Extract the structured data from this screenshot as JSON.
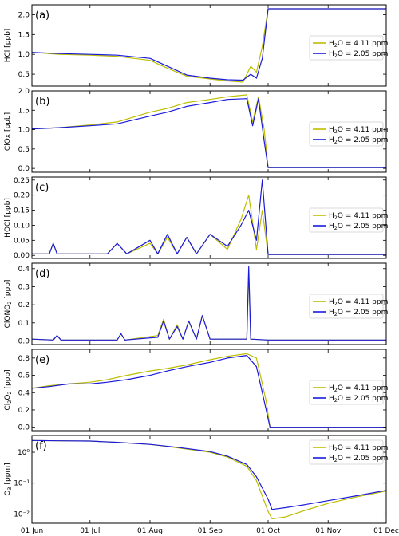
{
  "colors": {
    "h2o_high": "#bdbd00",
    "h2o_low": "#1a1adc"
  },
  "x_tick_labels": [
    "01 Jun",
    "01 Jul",
    "01 Aug",
    "01 Sep",
    "01 Oct",
    "01 Nov",
    "01 Dec"
  ],
  "chart_data": [
    {
      "type": "line",
      "panel_label": "(a)",
      "ylabel": "HCl [ppb]",
      "yscale": "linear",
      "ylim": [
        0.2,
        2.25
      ],
      "yticks": [
        0.5,
        1.0,
        1.5,
        2.0
      ],
      "ytick_labels": [
        "0.5",
        "1.0",
        "1.5",
        "2.0"
      ],
      "x": [
        "2011-06-01",
        "2011-06-15",
        "2011-07-01",
        "2011-07-15",
        "2011-08-01",
        "2011-08-10",
        "2011-08-20",
        "2011-09-01",
        "2011-09-10",
        "2011-09-18",
        "2011-09-22",
        "2011-09-25",
        "2011-09-28",
        "2011-10-01",
        "2011-10-15",
        "2011-11-01",
        "2011-11-15",
        "2011-12-01"
      ],
      "series": [
        {
          "name": "H2O = 4.11 ppm",
          "values": [
            1.05,
            1.0,
            0.98,
            0.95,
            0.85,
            0.65,
            0.45,
            0.38,
            0.33,
            0.3,
            0.7,
            0.55,
            1.2,
            2.15,
            2.15,
            2.15,
            2.15,
            2.15
          ]
        },
        {
          "name": "H2O = 2.05 ppm",
          "values": [
            1.05,
            1.02,
            1.0,
            0.98,
            0.9,
            0.7,
            0.48,
            0.4,
            0.36,
            0.35,
            0.5,
            0.4,
            0.9,
            2.15,
            2.15,
            2.15,
            2.15,
            2.15
          ]
        }
      ]
    },
    {
      "type": "line",
      "panel_label": "(b)",
      "ylabel": "ClOx [ppb]",
      "yscale": "linear",
      "ylim": [
        -0.1,
        2.0
      ],
      "yticks": [
        0.0,
        0.5,
        1.0,
        1.5,
        2.0
      ],
      "ytick_labels": [
        "0.0",
        "0.5",
        "1.0",
        "1.5",
        "2.0"
      ],
      "x": [
        "2011-06-01",
        "2011-06-15",
        "2011-07-01",
        "2011-07-15",
        "2011-08-01",
        "2011-08-10",
        "2011-08-20",
        "2011-09-01",
        "2011-09-10",
        "2011-09-20",
        "2011-09-23",
        "2011-09-26",
        "2011-09-29",
        "2011-10-01",
        "2011-10-15",
        "2011-11-01",
        "2011-11-15",
        "2011-12-01"
      ],
      "series": [
        {
          "name": "H2O = 4.11 ppm",
          "values": [
            1.02,
            1.05,
            1.12,
            1.2,
            1.45,
            1.55,
            1.7,
            1.78,
            1.85,
            1.9,
            1.2,
            1.85,
            1.0,
            0.02,
            0.02,
            0.02,
            0.02,
            0.02
          ]
        },
        {
          "name": "H2O = 2.05 ppm",
          "values": [
            1.02,
            1.05,
            1.1,
            1.15,
            1.35,
            1.45,
            1.6,
            1.7,
            1.78,
            1.8,
            1.1,
            1.8,
            0.7,
            0.02,
            0.02,
            0.02,
            0.02,
            0.02
          ]
        }
      ]
    },
    {
      "type": "line",
      "panel_label": "(c)",
      "ylabel": "HOCl [ppb]",
      "yscale": "linear",
      "ylim": [
        -0.01,
        0.26
      ],
      "yticks": [
        0.0,
        0.05,
        0.1,
        0.15,
        0.2,
        0.25
      ],
      "ytick_labels": [
        "0.00",
        "0.05",
        "0.10",
        "0.15",
        "0.20",
        "0.25"
      ],
      "x": [
        "2011-06-01",
        "2011-06-10",
        "2011-06-12",
        "2011-06-14",
        "2011-07-01",
        "2011-07-10",
        "2011-07-15",
        "2011-07-20",
        "2011-08-01",
        "2011-08-05",
        "2011-08-10",
        "2011-08-15",
        "2011-08-20",
        "2011-08-25",
        "2011-09-01",
        "2011-09-10",
        "2011-09-17",
        "2011-09-21",
        "2011-09-25",
        "2011-09-28",
        "2011-10-01",
        "2011-10-15",
        "2011-11-01",
        "2011-12-01"
      ],
      "series": [
        {
          "name": "H2O = 4.11 ppm",
          "values": [
            0.005,
            0.005,
            0.04,
            0.005,
            0.005,
            0.005,
            0.04,
            0.005,
            0.04,
            0.005,
            0.06,
            0.005,
            0.06,
            0.005,
            0.07,
            0.02,
            0.12,
            0.2,
            0.02,
            0.15,
            0.003,
            0.003,
            0.003,
            0.003
          ]
        },
        {
          "name": "H2O = 2.05 ppm",
          "values": [
            0.005,
            0.005,
            0.04,
            0.005,
            0.005,
            0.005,
            0.04,
            0.005,
            0.05,
            0.005,
            0.07,
            0.005,
            0.06,
            0.005,
            0.07,
            0.03,
            0.1,
            0.15,
            0.05,
            0.25,
            0.003,
            0.003,
            0.003,
            0.003
          ]
        }
      ]
    },
    {
      "type": "line",
      "panel_label": "(d)",
      "ylabel": "ClONO2 [ppb]",
      "yscale": "linear",
      "ylim": [
        -0.02,
        0.43
      ],
      "yticks": [
        0.0,
        0.1,
        0.2,
        0.3,
        0.4
      ],
      "ytick_labels": [
        "0.0",
        "0.1",
        "0.2",
        "0.3",
        "0.4"
      ],
      "x": [
        "2011-06-01",
        "2011-06-12",
        "2011-06-14",
        "2011-06-16",
        "2011-07-15",
        "2011-07-17",
        "2011-07-19",
        "2011-08-05",
        "2011-08-08",
        "2011-08-11",
        "2011-08-15",
        "2011-08-18",
        "2011-08-21",
        "2011-08-25",
        "2011-08-28",
        "2011-09-01",
        "2011-09-20",
        "2011-09-21",
        "2011-09-22",
        "2011-10-01",
        "2011-12-01"
      ],
      "series": [
        {
          "name": "H2O = 4.11 ppm",
          "values": [
            0.01,
            0.005,
            0.03,
            0.005,
            0.005,
            0.04,
            0.005,
            0.03,
            0.12,
            0.01,
            0.09,
            0.01,
            0.11,
            0.01,
            0.14,
            0.01,
            0.01,
            0.38,
            0.01,
            0.005,
            0.005
          ]
        },
        {
          "name": "H2O = 2.05 ppm",
          "values": [
            0.01,
            0.005,
            0.03,
            0.005,
            0.005,
            0.04,
            0.005,
            0.02,
            0.11,
            0.01,
            0.08,
            0.01,
            0.11,
            0.01,
            0.14,
            0.01,
            0.01,
            0.41,
            0.01,
            0.005,
            0.005
          ]
        }
      ]
    },
    {
      "type": "line",
      "panel_label": "(e)",
      "ylabel": "Cl2O2 [ppb]",
      "yscale": "linear",
      "ylim": [
        -0.04,
        0.9
      ],
      "yticks": [
        0.0,
        0.2,
        0.4,
        0.6,
        0.8
      ],
      "ytick_labels": [
        "0.0",
        "0.2",
        "0.4",
        "0.6",
        "0.8"
      ],
      "x": [
        "2011-06-01",
        "2011-06-10",
        "2011-06-20",
        "2011-07-01",
        "2011-07-10",
        "2011-07-20",
        "2011-08-01",
        "2011-08-10",
        "2011-08-20",
        "2011-09-01",
        "2011-09-10",
        "2011-09-20",
        "2011-09-25",
        "2011-09-30",
        "2011-10-02",
        "2011-11-01",
        "2011-12-01"
      ],
      "series": [
        {
          "name": "H2O = 4.11 ppm",
          "values": [
            0.45,
            0.48,
            0.5,
            0.52,
            0.55,
            0.6,
            0.65,
            0.68,
            0.72,
            0.78,
            0.82,
            0.85,
            0.8,
            0.3,
            0.0,
            0.0,
            0.0
          ]
        },
        {
          "name": "H2O = 2.05 ppm",
          "values": [
            0.45,
            0.47,
            0.5,
            0.5,
            0.52,
            0.55,
            0.6,
            0.65,
            0.7,
            0.75,
            0.8,
            0.83,
            0.7,
            0.2,
            0.0,
            0.0,
            0.0
          ]
        }
      ]
    },
    {
      "type": "line",
      "panel_label": "(f)",
      "ylabel": "O3 [ppm]",
      "yscale": "log",
      "ylim": [
        0.005,
        3.5
      ],
      "yticks": [
        0.01,
        0.1,
        1
      ],
      "ytick_labels": [
        "10⁻²",
        "10⁻¹",
        "10⁰"
      ],
      "x": [
        "2011-06-01",
        "2011-06-15",
        "2011-07-01",
        "2011-07-15",
        "2011-08-01",
        "2011-08-15",
        "2011-09-01",
        "2011-09-10",
        "2011-09-20",
        "2011-09-25",
        "2011-10-01",
        "2011-10-03",
        "2011-10-10",
        "2011-10-20",
        "2011-11-01",
        "2011-11-15",
        "2011-12-01"
      ],
      "series": [
        {
          "name": "H2O = 4.11 ppm",
          "values": [
            2.4,
            2.35,
            2.3,
            2.1,
            1.8,
            1.4,
            1.0,
            0.7,
            0.35,
            0.12,
            0.012,
            0.007,
            0.008,
            0.013,
            0.022,
            0.035,
            0.055
          ]
        },
        {
          "name": "H2O = 2.05 ppm",
          "values": [
            2.4,
            2.35,
            2.3,
            2.1,
            1.8,
            1.45,
            1.05,
            0.75,
            0.4,
            0.16,
            0.03,
            0.014,
            0.016,
            0.02,
            0.027,
            0.038,
            0.058
          ]
        }
      ]
    }
  ]
}
